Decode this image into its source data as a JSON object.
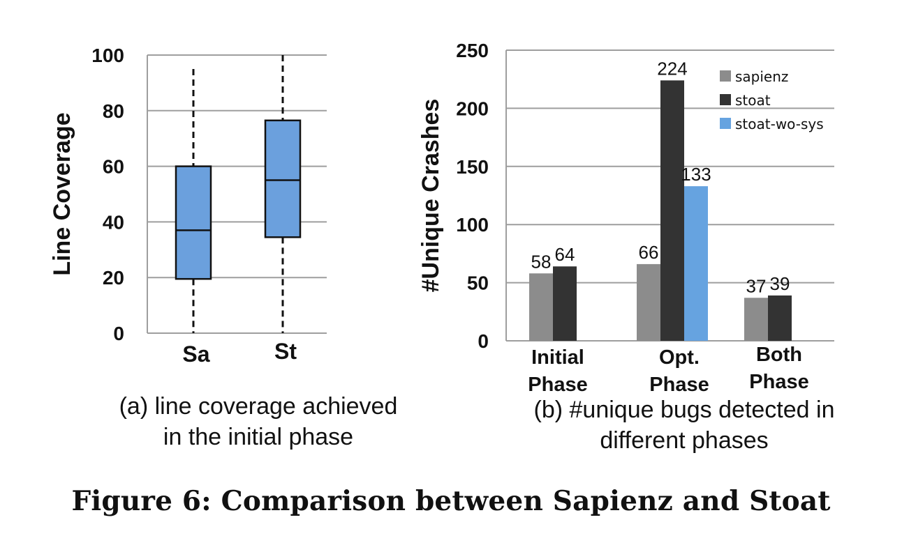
{
  "figure_title": "Figure 6: Comparison between Sapienz and Stoat",
  "colors": {
    "box_fill": "#6ba0dd",
    "sapienz": "#8c8c8c",
    "stoat": "#333333",
    "stoat_wo_sys": "#66a3e0",
    "grid": "#9e9e9e"
  },
  "chart_data": [
    {
      "type": "box",
      "ylabel": "Line Coverage",
      "ylim": [
        0,
        100
      ],
      "yticks": [
        "0",
        "20",
        "40",
        "60",
        "80",
        "100"
      ],
      "categories": [
        "Sa",
        "St"
      ],
      "boxes": [
        {
          "name": "Sa",
          "min": 0,
          "q1": 19.5,
          "median": 37,
          "q3": 60,
          "max": 95
        },
        {
          "name": "St",
          "min": 0,
          "q1": 34.5,
          "median": 55,
          "q3": 76.5,
          "max": 100
        }
      ],
      "caption": [
        "(a) line coverage achieved",
        "in the initial phase"
      ]
    },
    {
      "type": "bar",
      "ylabel": "#Unique Crashes",
      "ylim": [
        0,
        250
      ],
      "yticks": [
        "0",
        "50",
        "100",
        "150",
        "200",
        "250"
      ],
      "categories": [
        [
          "Initial",
          "Phase"
        ],
        [
          "Opt.",
          "Phase"
        ],
        [
          "Both",
          "Phase"
        ]
      ],
      "series": [
        {
          "name": "sapienz",
          "values": [
            58,
            66,
            37
          ],
          "labels": [
            "58",
            "66",
            "37"
          ]
        },
        {
          "name": "stoat",
          "values": [
            64,
            224,
            39
          ],
          "labels": [
            "64",
            "224",
            "39"
          ]
        },
        {
          "name": "stoat-wo-sys",
          "values": [
            null,
            133,
            null
          ],
          "labels": [
            "",
            "133",
            ""
          ]
        }
      ],
      "legend": "top-right",
      "caption": [
        "(b) #unique bugs detected in",
        "different phases"
      ]
    }
  ]
}
